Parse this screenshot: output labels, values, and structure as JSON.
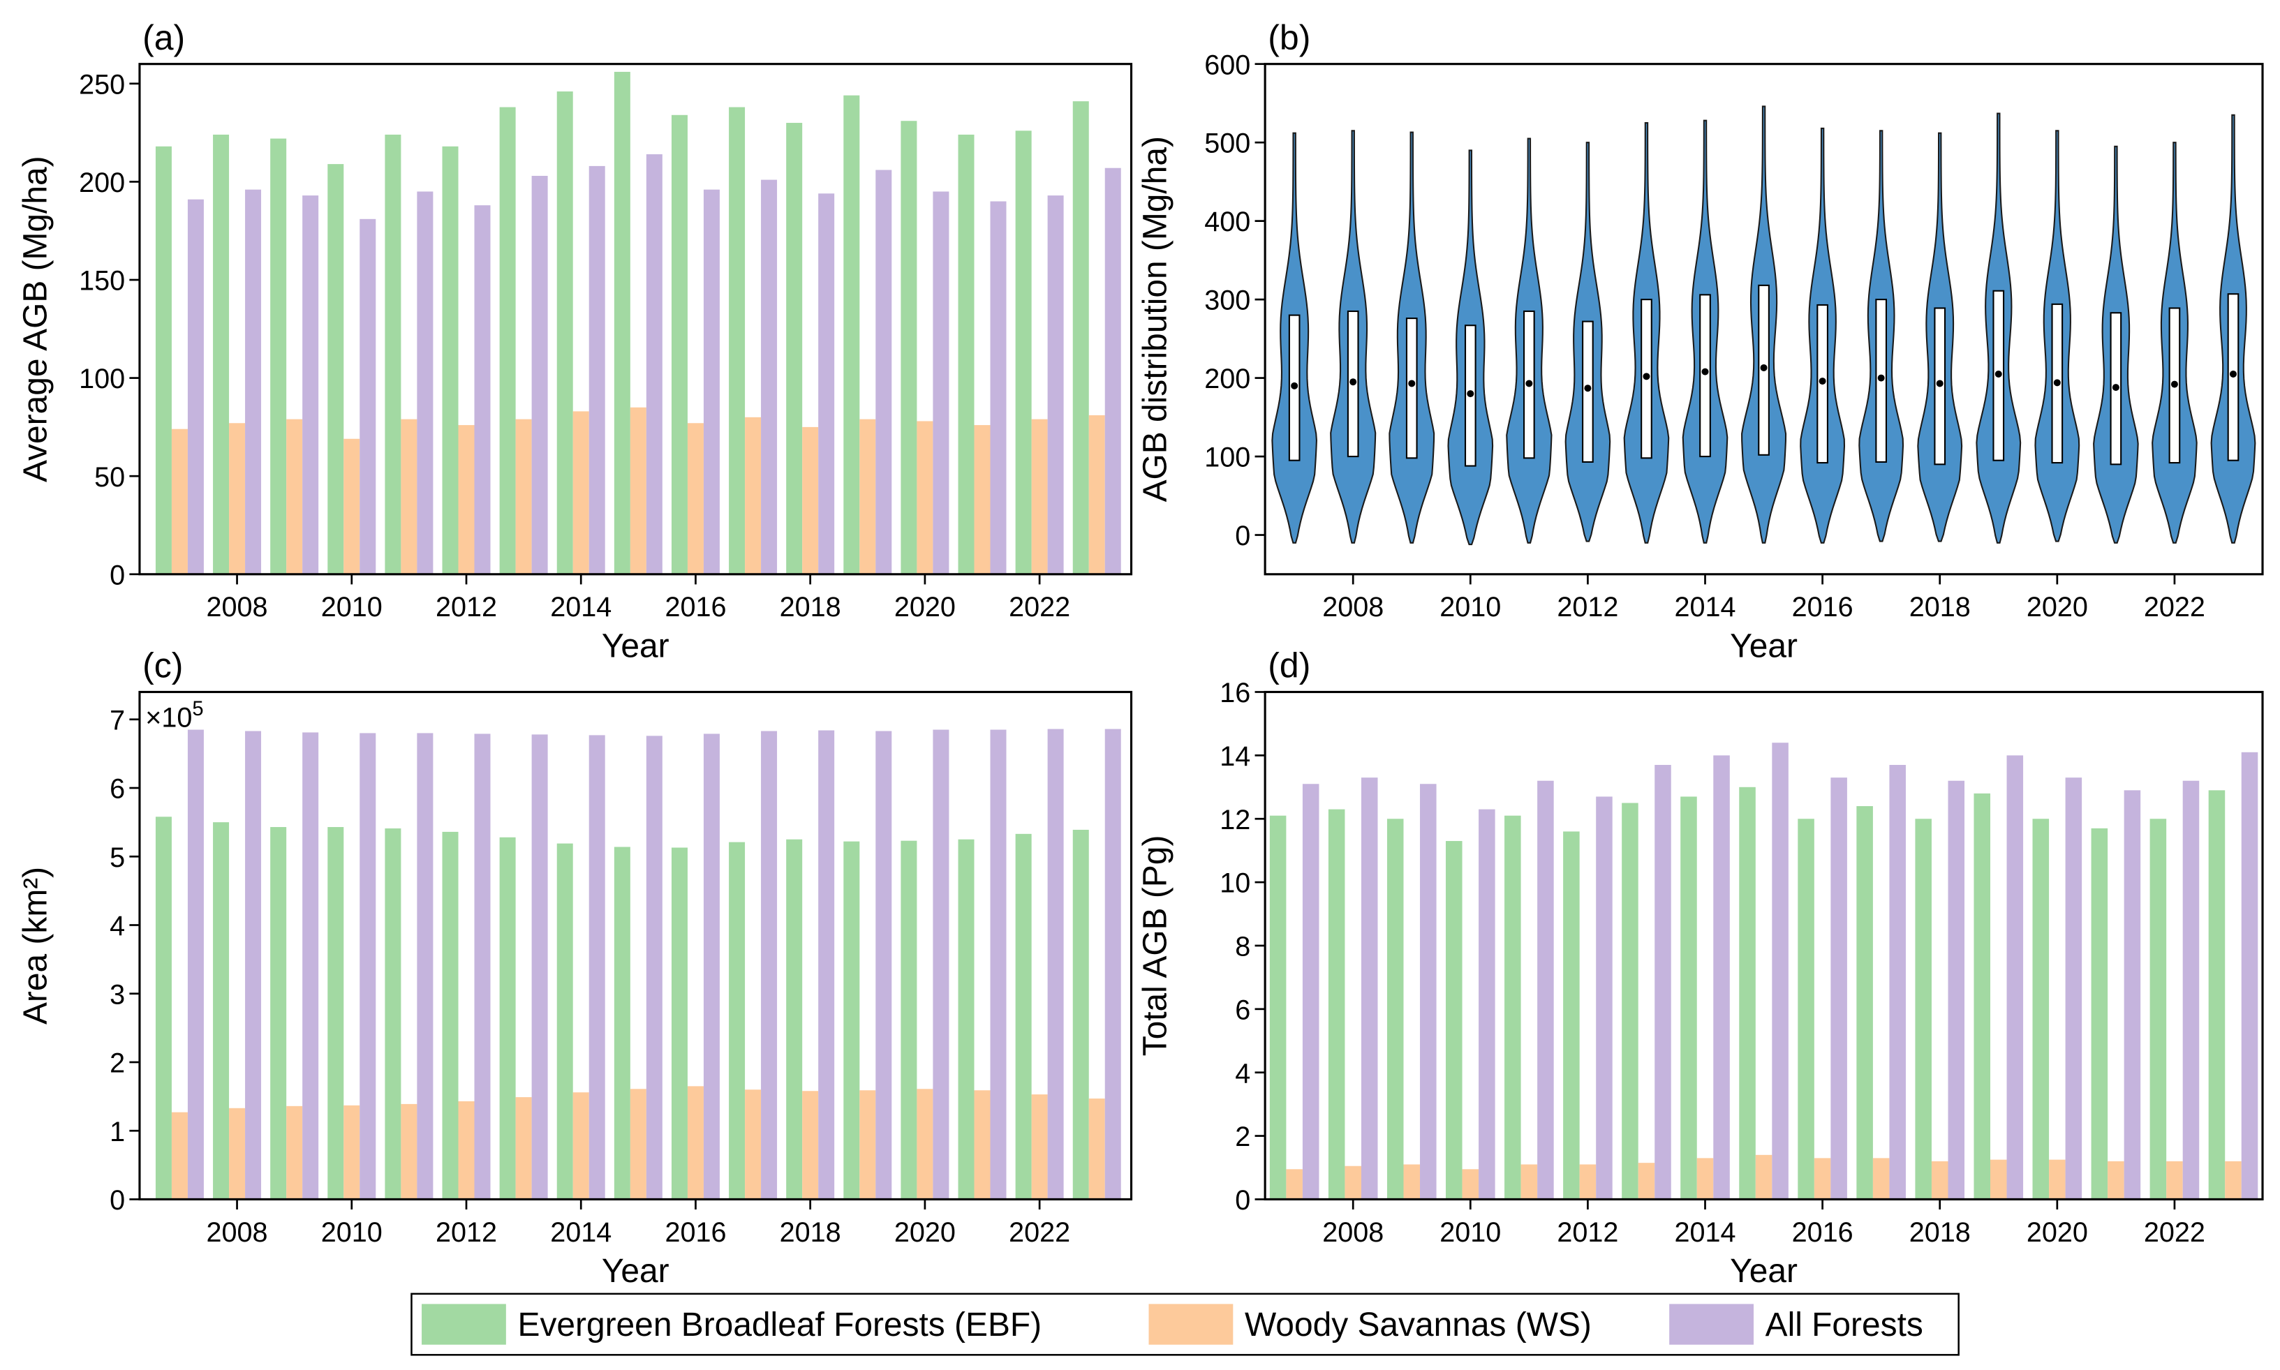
{
  "chart_data": [
    {
      "type": "bar",
      "title": "(a)",
      "x_label": "Year",
      "y_label": "Average AGB (Mg/ha)",
      "x": [
        2007,
        2008,
        2009,
        2010,
        2011,
        2012,
        2013,
        2014,
        2015,
        2016,
        2017,
        2018,
        2019,
        2020,
        2021,
        2022,
        2023
      ],
      "series": [
        {
          "values": [
            218,
            224,
            222,
            209,
            224,
            218,
            238,
            246,
            256,
            234,
            238,
            230,
            244,
            231,
            224,
            226,
            241
          ]
        },
        {
          "values": [
            74,
            77,
            79,
            69,
            79,
            76,
            79,
            83,
            85,
            77,
            80,
            75,
            79,
            78,
            76,
            79,
            81
          ]
        },
        {
          "values": [
            191,
            196,
            193,
            181,
            195,
            188,
            203,
            208,
            214,
            196,
            201,
            194,
            206,
            195,
            190,
            193,
            207
          ]
        }
      ],
      "xlim": [
        2006.3,
        2023.6
      ],
      "xticks": [
        2008,
        2010,
        2012,
        2014,
        2016,
        2018,
        2020,
        2022
      ],
      "ylim": [
        0,
        260
      ],
      "yticks": [
        0,
        50,
        100,
        150,
        200,
        250
      ]
    },
    {
      "type": "violin",
      "title": "(b)",
      "x_label": "Year",
      "y_label": "AGB distribution (Mg/ha)",
      "x": [
        2007,
        2008,
        2009,
        2010,
        2011,
        2012,
        2013,
        2014,
        2015,
        2016,
        2017,
        2018,
        2019,
        2020,
        2021,
        2022,
        2023
      ],
      "min": [
        -10,
        -10,
        -10,
        -12,
        -10,
        -8,
        -10,
        -10,
        -10,
        -10,
        -8,
        -8,
        -10,
        -8,
        -10,
        -10,
        -10
      ],
      "q1": [
        95,
        100,
        98,
        88,
        98,
        93,
        98,
        100,
        102,
        92,
        93,
        90,
        95,
        92,
        90,
        92,
        95
      ],
      "median": [
        190,
        195,
        193,
        180,
        193,
        187,
        202,
        208,
        213,
        196,
        200,
        193,
        205,
        194,
        188,
        192,
        205
      ],
      "q3": [
        280,
        285,
        276,
        267,
        285,
        272,
        300,
        306,
        318,
        293,
        300,
        289,
        311,
        294,
        283,
        289,
        307
      ],
      "max": [
        512,
        515,
        513,
        490,
        505,
        500,
        525,
        528,
        546,
        518,
        515,
        512,
        537,
        515,
        495,
        500,
        535
      ],
      "color": "#4a91c9",
      "xlim": [
        2006.5,
        2023.5
      ],
      "xticks": [
        2008,
        2010,
        2012,
        2014,
        2016,
        2018,
        2020,
        2022
      ],
      "ylim": [
        -50,
        600
      ],
      "yticks": [
        0,
        100,
        200,
        300,
        400,
        500,
        600
      ]
    },
    {
      "type": "bar",
      "title": "(c)",
      "x_label": "Year",
      "y_label": "Area (km²)",
      "multiplier": "×10",
      "multiplier_exp": "5",
      "x": [
        2007,
        2008,
        2009,
        2010,
        2011,
        2012,
        2013,
        2014,
        2015,
        2016,
        2017,
        2018,
        2019,
        2020,
        2021,
        2022,
        2023
      ],
      "series": [
        {
          "values": [
            5.58,
            5.5,
            5.43,
            5.43,
            5.41,
            5.36,
            5.28,
            5.19,
            5.14,
            5.13,
            5.21,
            5.25,
            5.22,
            5.23,
            5.25,
            5.33,
            5.39
          ]
        },
        {
          "values": [
            1.27,
            1.33,
            1.36,
            1.37,
            1.39,
            1.43,
            1.49,
            1.56,
            1.61,
            1.65,
            1.6,
            1.58,
            1.59,
            1.61,
            1.59,
            1.53,
            1.47
          ]
        },
        {
          "values": [
            6.85,
            6.83,
            6.81,
            6.8,
            6.8,
            6.79,
            6.78,
            6.77,
            6.76,
            6.79,
            6.83,
            6.84,
            6.83,
            6.85,
            6.85,
            6.86,
            6.86
          ]
        }
      ],
      "xlim": [
        2006.3,
        2023.6
      ],
      "xticks": [
        2008,
        2010,
        2012,
        2014,
        2016,
        2018,
        2020,
        2022
      ],
      "ylim": [
        0,
        7.4
      ],
      "yticks": [
        0,
        1,
        2,
        3,
        4,
        5,
        6,
        7
      ]
    },
    {
      "type": "bar",
      "title": "(d)",
      "x_label": "Year",
      "y_label": "Total AGB (Pg)",
      "x": [
        2007,
        2008,
        2009,
        2010,
        2011,
        2012,
        2013,
        2014,
        2015,
        2016,
        2017,
        2018,
        2019,
        2020,
        2021,
        2022,
        2023
      ],
      "series": [
        {
          "values": [
            12.1,
            12.3,
            12.0,
            11.3,
            12.1,
            11.6,
            12.5,
            12.7,
            13.0,
            12.0,
            12.4,
            12.0,
            12.8,
            12.0,
            11.7,
            12.0,
            12.9
          ]
        },
        {
          "values": [
            0.95,
            1.05,
            1.1,
            0.95,
            1.1,
            1.1,
            1.15,
            1.3,
            1.4,
            1.3,
            1.3,
            1.2,
            1.25,
            1.25,
            1.2,
            1.2,
            1.2
          ]
        },
        {
          "values": [
            13.1,
            13.3,
            13.1,
            12.3,
            13.2,
            12.7,
            13.7,
            14.0,
            14.4,
            13.3,
            13.7,
            13.2,
            14.0,
            13.3,
            12.9,
            13.2,
            14.1
          ]
        }
      ],
      "xlim": [
        2006.5,
        2023.5
      ],
      "xticks": [
        2008,
        2010,
        2012,
        2014,
        2016,
        2018,
        2020,
        2022
      ],
      "ylim": [
        0,
        16
      ],
      "yticks": [
        0,
        2,
        4,
        6,
        8,
        10,
        12,
        14,
        16
      ]
    }
  ],
  "legend": [
    {
      "name": "Evergreen Broadleaf Forests (EBF)",
      "color": "#a2d9a2"
    },
    {
      "name": "Woody Savannas (WS)",
      "color": "#fdca9b"
    },
    {
      "name": "All Forests",
      "color": "#c5b4dd"
    }
  ]
}
